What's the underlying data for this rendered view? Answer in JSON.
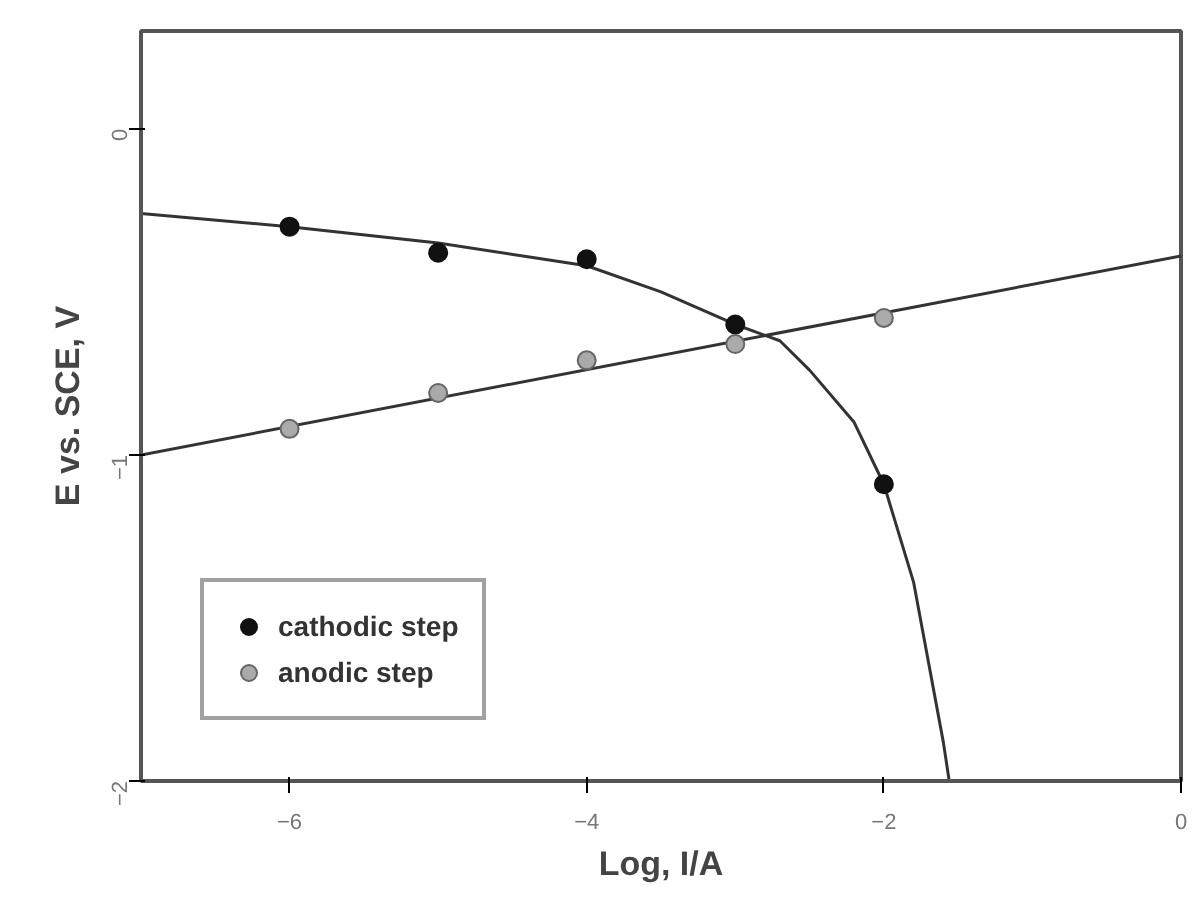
{
  "chart_data": {
    "type": "scatter",
    "xlabel": "Log, I/A",
    "ylabel": "E vs. SCE, V",
    "xlim": [
      -7,
      0
    ],
    "ylim": [
      -2,
      0.3
    ],
    "xticks": [
      -6,
      -4,
      -2,
      0
    ],
    "yticks": [
      0,
      -1,
      -2
    ],
    "grid": false,
    "legend": "bottom left",
    "series": [
      {
        "name": "cathodic step",
        "marker": "circle",
        "color": "#111111",
        "x": [
          -6,
          -5,
          -4,
          -3,
          -2
        ],
        "values": [
          -0.3,
          -0.38,
          -0.4,
          -0.6,
          -1.09
        ]
      },
      {
        "name": "anodic step",
        "marker": "circle",
        "color": "#aaaaaa",
        "x": [
          -6,
          -5,
          -4,
          -3,
          -2
        ],
        "values": [
          -0.92,
          -0.81,
          -0.71,
          -0.66,
          -0.58
        ]
      },
      {
        "type": "line",
        "marker": "none",
        "color": "#333333",
        "line_style": "solid",
        "x": [
          -7,
          -6,
          -5,
          -4,
          -3.5,
          -3,
          -2.7,
          -2.5,
          -2.2,
          -2,
          -1.8,
          -1.6,
          -1.56
        ],
        "values": [
          -0.26,
          -0.3,
          -0.35,
          -0.42,
          -0.5,
          -0.6,
          -0.65,
          -0.74,
          -0.9,
          -1.09,
          -1.39,
          -1.88,
          -2.0
        ]
      },
      {
        "type": "line",
        "marker": "none",
        "color": "#333333",
        "line_style": "solid",
        "x": [
          -7,
          0
        ],
        "values": [
          -1.0,
          -0.39
        ]
      }
    ]
  }
}
